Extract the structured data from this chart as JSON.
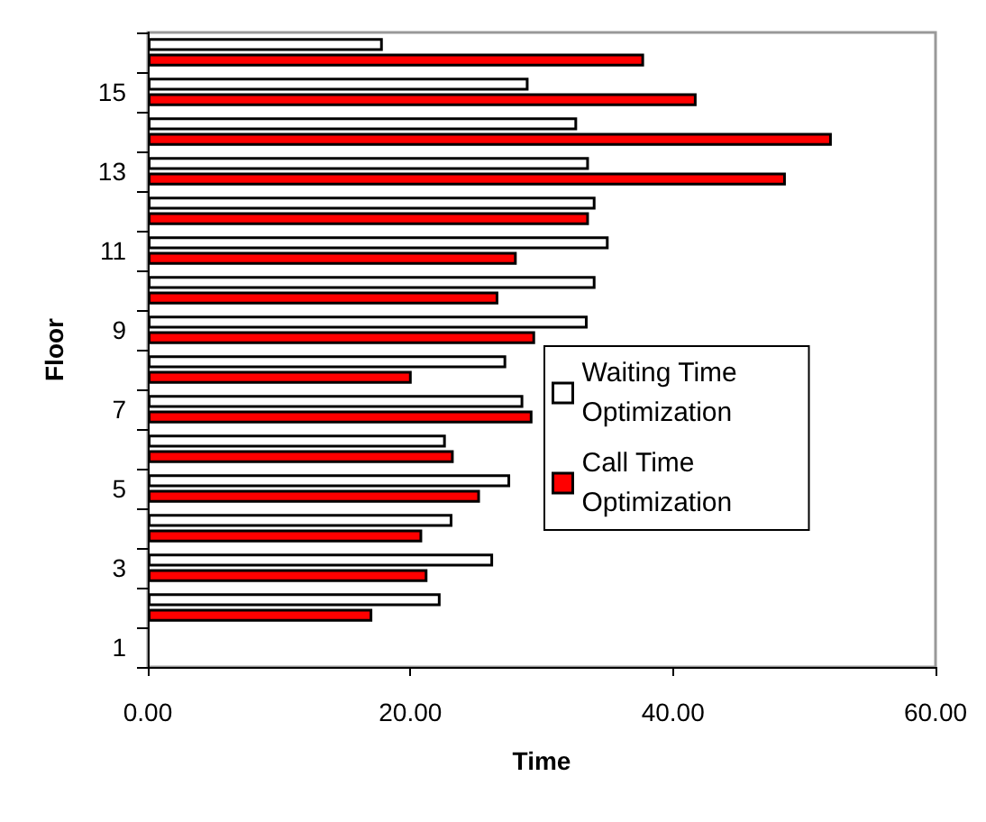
{
  "chart_data": {
    "type": "bar",
    "orientation": "horizontal",
    "xlabel": "Time",
    "ylabel": "Floor",
    "categories": [
      null,
      "15",
      null,
      "13",
      null,
      "11",
      null,
      "9",
      null,
      "7",
      null,
      "5",
      null,
      "3",
      null,
      "1"
    ],
    "series": [
      {
        "name": "Waiting Time Optimization",
        "color": "#ffffff",
        "values": [
          17.9,
          29.0,
          32.7,
          33.6,
          34.1,
          35.1,
          34.1,
          33.5,
          27.3,
          28.6,
          22.7,
          27.6,
          23.2,
          26.3,
          22.3,
          null
        ]
      },
      {
        "name": "Call Time Optimization",
        "color": "#ff0000",
        "values": [
          37.8,
          41.8,
          52.1,
          48.6,
          33.6,
          28.1,
          26.7,
          29.5,
          20.1,
          29.3,
          23.3,
          25.3,
          20.9,
          21.3,
          17.1,
          null
        ]
      }
    ],
    "xlim": [
      0,
      60
    ],
    "xticks": [
      {
        "value": 0,
        "label": "0.00"
      },
      {
        "value": 20,
        "label": "20.00"
      },
      {
        "value": 40,
        "label": "40.00"
      },
      {
        "value": 60,
        "label": "60.00"
      }
    ],
    "grid": false,
    "legend": "right"
  }
}
